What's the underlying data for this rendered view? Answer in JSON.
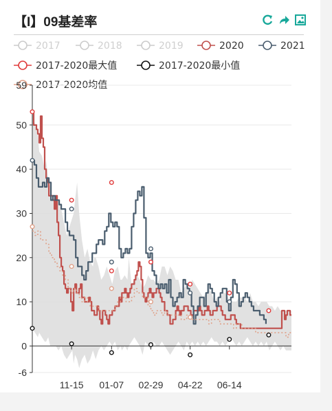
{
  "title": "【I】09基差率",
  "toolbar": [
    {
      "name": "refresh-icon",
      "color": "#18a89a"
    },
    {
      "name": "share-icon",
      "color": "#18a89a"
    },
    {
      "name": "save-image-icon",
      "color": "#18a89a"
    }
  ],
  "chart_data": {
    "type": "line",
    "title": "【I】09基差率",
    "xlabel": "",
    "ylabel": "",
    "ylim": [
      -6,
      59
    ],
    "yticks": [
      59,
      50,
      40,
      30,
      20,
      10,
      0,
      -6
    ],
    "xticks": [
      "11-15",
      "01-07",
      "02-29",
      "04-22",
      "06-14"
    ],
    "grid": true,
    "legend_position": "top",
    "legend": [
      {
        "name": "2017",
        "color": "#cccccc",
        "active": false
      },
      {
        "name": "2018",
        "color": "#cccccc",
        "active": false
      },
      {
        "name": "2019",
        "color": "#cccccc",
        "active": false
      },
      {
        "name": "2020",
        "color": "#c0504d",
        "active": true
      },
      {
        "name": "2021",
        "color": "#4a5d6e",
        "active": true
      },
      {
        "name": "2017-2020最大值",
        "color": "#e03b3b",
        "active": true
      },
      {
        "name": "2017-2020最小值",
        "color": "#111111",
        "active": true
      },
      {
        "name": "2017-2020均值",
        "color": "#e0a088",
        "active": true
      }
    ],
    "band": {
      "x": [
        0,
        4,
        8,
        10,
        14,
        18,
        20,
        23,
        26,
        30,
        34,
        38,
        42,
        46,
        50,
        54,
        58,
        60,
        62,
        65,
        68,
        72,
        76,
        80,
        84,
        88,
        90,
        92,
        96,
        100,
        104,
        108,
        112,
        116,
        120,
        124,
        128,
        130,
        134,
        138,
        140,
        144,
        148,
        152,
        156,
        160,
        164,
        168,
        172,
        176,
        180,
        184,
        188,
        192,
        196,
        200,
        204,
        208,
        212,
        216,
        220,
        224,
        228,
        232,
        236,
        240,
        244,
        248,
        252,
        256,
        260,
        264,
        268,
        272,
        276,
        280,
        284,
        288,
        292,
        296,
        300,
        304,
        308,
        312,
        316,
        320,
        324,
        328,
        332,
        336,
        340,
        344,
        348,
        352,
        356,
        360,
        364,
        368,
        372,
        376
      ],
      "upper": [
        53,
        50,
        48,
        44,
        43,
        40,
        42,
        38,
        36,
        33,
        32,
        33,
        31,
        28,
        25,
        27,
        29,
        30,
        33,
        37,
        30,
        24,
        20,
        22,
        19,
        18,
        20,
        20,
        18,
        15,
        16,
        18,
        16,
        14,
        17,
        18,
        15,
        15,
        16,
        15,
        20,
        14,
        15,
        16,
        15,
        13,
        14,
        16,
        15,
        15,
        14,
        15,
        18,
        18,
        16,
        18,
        17,
        15,
        15,
        12,
        13,
        14,
        13,
        15,
        14,
        13,
        12,
        11,
        12,
        13,
        12,
        10,
        11,
        10,
        12,
        12,
        11,
        10,
        10,
        10,
        11,
        11,
        11,
        10,
        12,
        10,
        10,
        9,
        10,
        10,
        10,
        9,
        9,
        8,
        9,
        8,
        8,
        8,
        8,
        8
      ],
      "lower": [
        4,
        3,
        2,
        3,
        2,
        1,
        1,
        2,
        0,
        0,
        0,
        -1,
        0,
        -2,
        -3,
        -2,
        -1,
        -4,
        -2,
        -3,
        -5,
        -3,
        -2,
        -4,
        -3,
        -1,
        -2,
        -3,
        -1,
        0,
        -1,
        0,
        1,
        0,
        1,
        -1,
        0,
        -1,
        0,
        -1,
        0,
        1,
        2,
        1,
        0,
        -2,
        1,
        0,
        -1,
        1,
        0,
        0,
        1,
        0,
        -1,
        -2,
        -1,
        0,
        1,
        0,
        -1,
        1,
        0,
        1,
        0,
        1,
        0,
        1,
        0,
        1,
        2,
        1,
        1,
        0,
        1,
        0,
        1,
        2,
        1,
        0,
        1,
        0,
        1,
        2,
        1,
        0,
        1,
        0,
        1,
        0,
        1,
        -1,
        0,
        1,
        0,
        -1,
        0,
        -1,
        -1,
        -1
      ]
    },
    "series": [
      {
        "name": "2020",
        "color": "#c0504d",
        "x": [
          0,
          2,
          4,
          6,
          8,
          10,
          12,
          14,
          16,
          18,
          20,
          22,
          24,
          26,
          28,
          30,
          32,
          34,
          36,
          38,
          40,
          42,
          44,
          46,
          48,
          50,
          52,
          54,
          56,
          58,
          60,
          62,
          64,
          66,
          68,
          70,
          72,
          74,
          76,
          78,
          80,
          82,
          84,
          86,
          88,
          90,
          92,
          94,
          96,
          98,
          100,
          102,
          104,
          106,
          108,
          110,
          112,
          114,
          116,
          118,
          120,
          122,
          124,
          126,
          128,
          130,
          132,
          134,
          136,
          138,
          140,
          142,
          144,
          146,
          148,
          150,
          152,
          154,
          156,
          158,
          160,
          162,
          164,
          166,
          168,
          170,
          172,
          174,
          176,
          178,
          180,
          182,
          184,
          186,
          188,
          190,
          192,
          194,
          196,
          198,
          200,
          202,
          204,
          206,
          208,
          210,
          212,
          214,
          216,
          218,
          220,
          222,
          224,
          226,
          228,
          230,
          232,
          234,
          236,
          238,
          240,
          242,
          244,
          246,
          248,
          250,
          252,
          254,
          256,
          258,
          260,
          262,
          264,
          266,
          268,
          270,
          272,
          274,
          276,
          278,
          280,
          282,
          284,
          286,
          288,
          290,
          292,
          294,
          296,
          298,
          300,
          302,
          304,
          306,
          308,
          310,
          312,
          314,
          316,
          318,
          320,
          322,
          324,
          326,
          328,
          330,
          332,
          334,
          336,
          338,
          340,
          342,
          344,
          346,
          348,
          350,
          352,
          354,
          356,
          358,
          360,
          362,
          364,
          366,
          368,
          370,
          372,
          374,
          376
        ],
        "y": [
          53,
          50,
          50,
          49,
          48,
          46,
          52,
          47,
          45,
          40,
          38,
          37,
          34,
          34,
          34,
          33,
          31,
          34,
          28,
          25,
          20,
          18,
          17,
          14,
          13,
          12,
          13,
          13,
          10,
          8,
          13,
          14,
          12,
          12,
          13,
          14,
          11,
          11,
          10,
          10,
          10,
          11,
          10,
          8,
          8,
          7,
          7,
          9,
          8,
          6,
          5,
          8,
          8,
          7,
          6,
          5,
          7,
          7,
          8,
          8,
          9,
          9,
          9,
          11,
          10,
          12,
          12,
          13,
          12,
          11,
          12,
          13,
          14,
          14,
          15,
          16,
          17,
          19,
          18,
          15,
          12,
          11,
          10,
          11,
          12,
          13,
          12,
          11,
          12,
          12,
          13,
          13,
          12,
          11,
          10,
          10,
          8,
          8,
          7,
          7,
          5,
          5,
          6,
          6,
          8,
          9,
          8,
          7,
          8,
          8,
          9,
          9,
          9,
          8,
          8,
          7,
          7,
          8,
          8,
          8,
          8,
          9,
          8,
          7,
          7,
          8,
          8,
          9,
          8,
          7,
          7,
          8,
          8,
          8,
          9,
          9,
          9,
          8,
          7,
          7,
          6,
          6,
          6,
          6,
          7,
          7,
          7,
          6,
          5,
          5,
          5,
          4,
          4,
          4,
          4,
          4,
          4,
          4,
          4,
          4,
          4,
          4,
          4,
          4,
          4,
          4,
          4,
          4,
          4,
          4,
          4,
          4,
          4,
          4,
          4,
          4,
          4,
          4,
          4,
          4,
          4,
          8,
          8,
          6,
          7,
          8,
          8,
          7,
          7
        ]
      },
      {
        "name": "2021",
        "color": "#4a5d6e",
        "x": [
          0,
          3,
          6,
          9,
          12,
          15,
          18,
          21,
          24,
          27,
          30,
          33,
          36,
          39,
          42,
          45,
          48,
          51,
          54,
          57,
          60,
          63,
          66,
          69,
          72,
          75,
          78,
          81,
          84,
          87,
          90,
          93,
          96,
          99,
          102,
          105,
          108,
          111,
          114,
          117,
          120,
          123,
          126,
          129,
          132,
          135,
          138,
          141,
          144,
          147,
          150,
          153,
          156,
          159,
          162,
          165,
          168,
          171,
          174,
          177,
          180,
          183,
          186,
          189,
          192,
          195,
          198,
          201,
          204,
          207,
          210,
          213,
          216,
          219,
          222,
          225,
          228,
          231,
          234,
          237,
          240,
          243,
          246,
          249,
          252,
          255,
          258,
          261,
          264,
          267,
          270,
          273,
          276,
          279,
          282,
          285,
          288,
          291,
          294,
          297,
          300,
          303,
          306,
          309,
          312,
          315,
          318,
          321,
          324,
          327,
          330,
          333,
          336,
          339
        ],
        "y": [
          42,
          41,
          38,
          36,
          36,
          37,
          36,
          38,
          37,
          33,
          34,
          33,
          33,
          32,
          31,
          31,
          28,
          26,
          25,
          25,
          24,
          20,
          18,
          18,
          16,
          15,
          17,
          19,
          19,
          21,
          21,
          23,
          24,
          24,
          23,
          26,
          27,
          30,
          28,
          27,
          28,
          27,
          22,
          20,
          21,
          22,
          21,
          22,
          27,
          30,
          33,
          35,
          34,
          36,
          29,
          21,
          20,
          21,
          17,
          16,
          14,
          13,
          14,
          13,
          14,
          12,
          15,
          11,
          9,
          10,
          11,
          12,
          11,
          15,
          14,
          13,
          12,
          9,
          5,
          7,
          9,
          11,
          11,
          9,
          12,
          14,
          13,
          12,
          10,
          9,
          11,
          12,
          13,
          13,
          10,
          8,
          11,
          15,
          14,
          12,
          9,
          10,
          11,
          12,
          11,
          10,
          9,
          8,
          8,
          8,
          7,
          7,
          6,
          5
        ]
      },
      {
        "name": "2017-2020均值",
        "color": "#e0a088",
        "dashed": true,
        "x": [
          0,
          4,
          8,
          12,
          16,
          20,
          24,
          28,
          32,
          36,
          40,
          44,
          48,
          52,
          56,
          60,
          64,
          68,
          72,
          76,
          80,
          84,
          88,
          92,
          96,
          100,
          104,
          108,
          112,
          116,
          120,
          124,
          128,
          132,
          136,
          140,
          144,
          148,
          152,
          156,
          160,
          164,
          168,
          172,
          176,
          180,
          184,
          188,
          192,
          196,
          200,
          204,
          208,
          212,
          216,
          220,
          224,
          228,
          232,
          236,
          240,
          244,
          248,
          252,
          256,
          260,
          264,
          268,
          272,
          276,
          280,
          284,
          288,
          292,
          296,
          300,
          304,
          308,
          312,
          316,
          320,
          324,
          328,
          332,
          336,
          340,
          344,
          348,
          352,
          356,
          360,
          364,
          368,
          372,
          376
        ],
        "y": [
          26,
          25,
          26,
          24,
          24,
          23,
          21,
          20,
          19,
          18,
          17,
          16,
          15,
          13,
          12,
          13,
          12,
          11,
          10,
          11,
          10,
          9,
          9,
          9,
          8,
          8,
          8,
          8,
          8,
          8,
          9,
          10,
          11,
          11,
          10,
          10,
          11,
          13,
          12,
          12,
          11,
          11,
          9,
          8,
          7,
          8,
          8,
          7,
          8,
          7,
          7,
          7,
          7,
          7,
          6,
          6,
          7,
          7,
          6,
          6,
          6,
          6,
          6,
          6,
          5,
          6,
          6,
          6,
          5,
          5,
          5,
          5,
          5,
          4,
          5,
          5,
          4,
          4,
          4,
          4,
          4,
          3,
          3,
          3,
          3,
          3,
          3,
          3,
          3,
          3,
          3,
          3,
          2,
          3,
          3
        ]
      }
    ],
    "max_points": [
      {
        "x": 0,
        "y": 53
      },
      {
        "x": 57,
        "y": 33
      },
      {
        "x": 115,
        "y": 37
      },
      {
        "x": 115,
        "y": 17
      },
      {
        "x": 172,
        "y": 19
      },
      {
        "x": 229,
        "y": 14
      },
      {
        "x": 286,
        "y": 12
      },
      {
        "x": 343,
        "y": 8
      }
    ],
    "min_points": [
      {
        "x": 0,
        "y": 4
      },
      {
        "x": 57,
        "y": 0.5
      },
      {
        "x": 115,
        "y": -1.5
      },
      {
        "x": 172,
        "y": 0.3
      },
      {
        "x": 229,
        "y": -2
      },
      {
        "x": 286,
        "y": 1.5
      },
      {
        "x": 343,
        "y": 2.5
      }
    ],
    "mean_points": [
      {
        "x": 0,
        "y": 27
      },
      {
        "x": 57,
        "y": 18
      },
      {
        "x": 115,
        "y": 13
      },
      {
        "x": 172,
        "y": 10
      },
      {
        "x": 229,
        "y": 6.5
      }
    ],
    "points_2021": [
      {
        "x": 0,
        "y": 42
      },
      {
        "x": 57,
        "y": 31
      },
      {
        "x": 115,
        "y": 19
      },
      {
        "x": 172,
        "y": 22
      },
      {
        "x": 229,
        "y": 12
      },
      {
        "x": 286,
        "y": 10
      }
    ]
  }
}
